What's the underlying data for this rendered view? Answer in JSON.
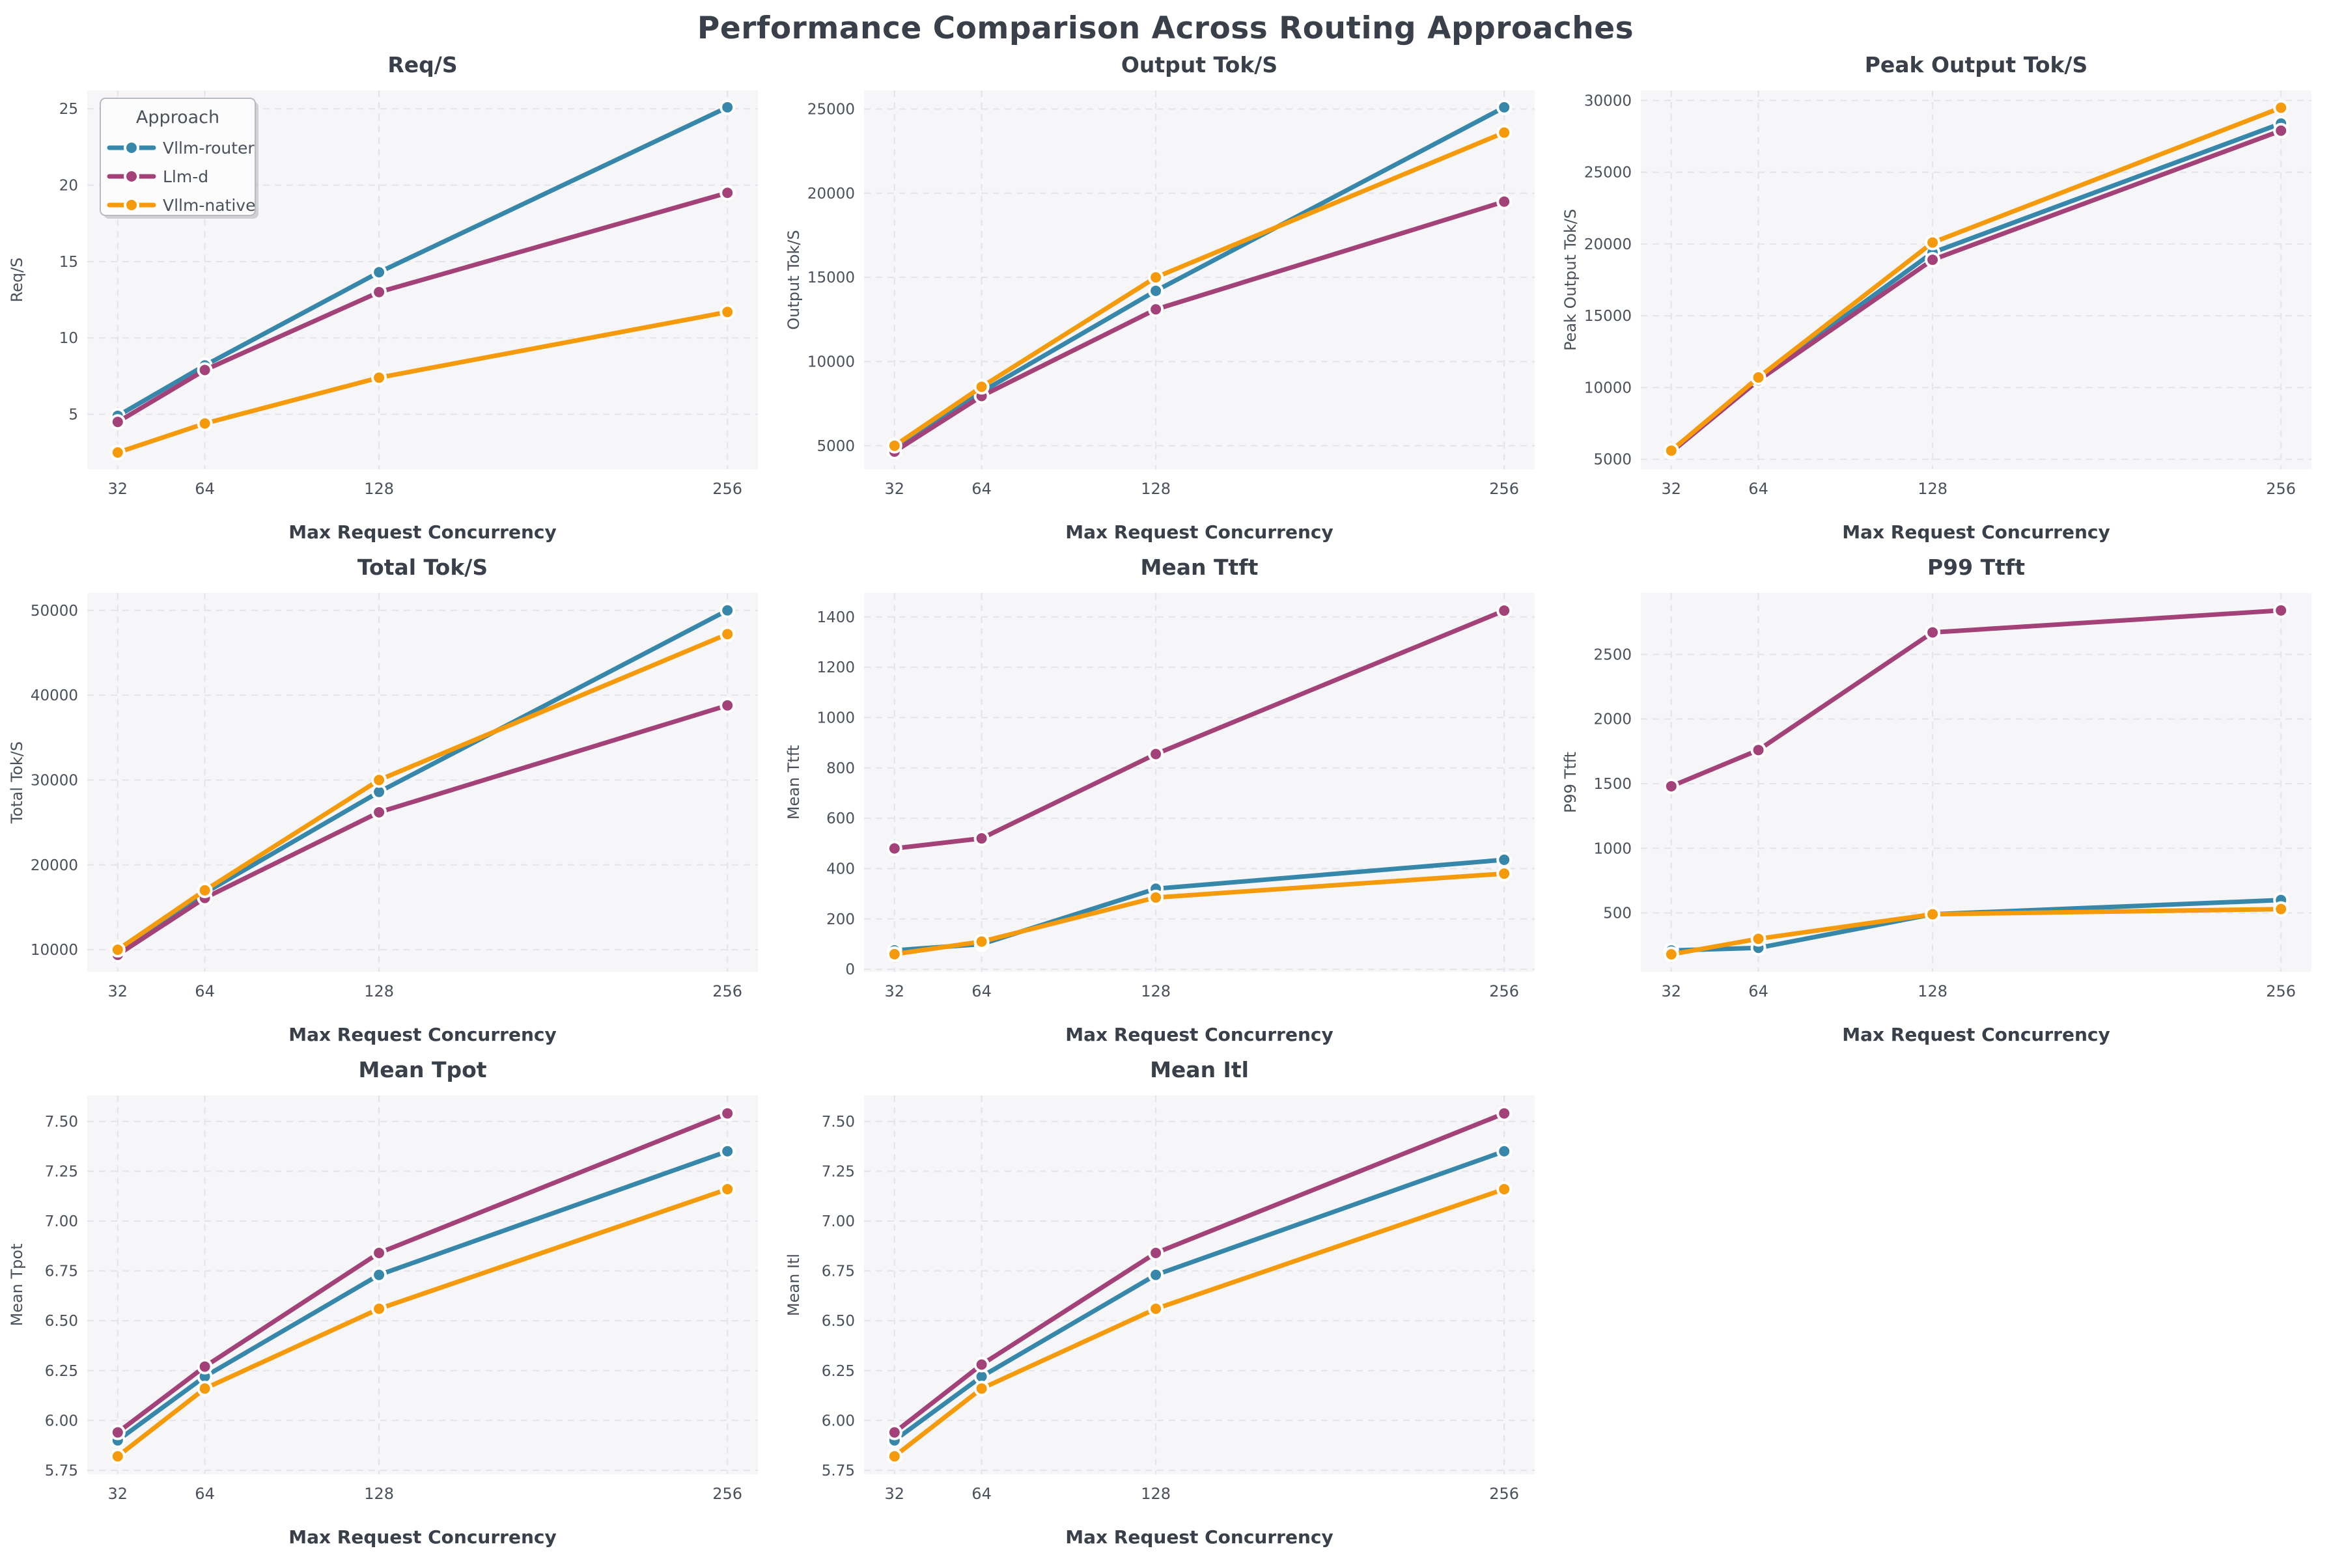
{
  "title": "Performance Comparison Across Routing Approaches",
  "colors": {
    "vllm_router": "#3787ab",
    "llm_d": "#a34278",
    "vllm_native": "#f49a0b",
    "heading_text": "#39404a",
    "tick_text": "#4a515b",
    "axes_background": "#f6f6f8",
    "gridline": "#e3e4e9",
    "legend_background": "#fcfcfd",
    "legend_border": "#b6bac1",
    "legend_shadow": "#b9b9bd",
    "marker_edge": "#ffffff"
  },
  "legend": {
    "title": "Approach",
    "entries": [
      {
        "label": "Vllm-router",
        "color_key": "vllm_router"
      },
      {
        "label": "Llm-d",
        "color_key": "llm_d"
      },
      {
        "label": "Vllm-native",
        "color_key": "vllm_native"
      }
    ]
  },
  "x_axis": {
    "label": "Max Request Concurrency",
    "values": [
      32,
      64,
      128,
      256
    ],
    "tick_labels": [
      "32",
      "64",
      "128",
      "256"
    ]
  },
  "chart_data": [
    {
      "type": "line",
      "title": "Req/S",
      "ylabel": "Req/S",
      "legend": true,
      "x": [
        32,
        64,
        128,
        256
      ],
      "series": [
        {
          "name": "Vllm-router",
          "color_key": "vllm_router",
          "values": [
            4.9,
            8.2,
            14.3,
            25.1
          ]
        },
        {
          "name": "Llm-d",
          "color_key": "llm_d",
          "values": [
            4.5,
            7.9,
            13.0,
            19.5
          ]
        },
        {
          "name": "Vllm-native",
          "color_key": "vllm_native",
          "values": [
            2.5,
            4.4,
            7.4,
            11.7
          ]
        }
      ],
      "ylim": [
        1.4,
        26.2
      ],
      "yticks": [
        5,
        10,
        15,
        20,
        25
      ],
      "ytick_labels": [
        "5",
        "10",
        "15",
        "20",
        "25"
      ]
    },
    {
      "type": "line",
      "title": "Output Tok/S",
      "ylabel": "Output Tok/S",
      "legend": false,
      "x": [
        32,
        64,
        128,
        256
      ],
      "series": [
        {
          "name": "Vllm-router",
          "color_key": "vllm_router",
          "values": [
            4950,
            8200,
            14200,
            25100
          ]
        },
        {
          "name": "Llm-d",
          "color_key": "llm_d",
          "values": [
            4650,
            7950,
            13100,
            19500
          ]
        },
        {
          "name": "Vllm-native",
          "color_key": "vllm_native",
          "values": [
            5000,
            8500,
            15000,
            23600
          ]
        }
      ],
      "ylim": [
        3600,
        26100
      ],
      "yticks": [
        5000,
        10000,
        15000,
        20000,
        25000
      ],
      "ytick_labels": [
        "5000",
        "10000",
        "15000",
        "20000",
        "25000"
      ]
    },
    {
      "type": "line",
      "title": "Peak Output Tok/S",
      "ylabel": "Peak Output Tok/S",
      "legend": false,
      "x": [
        32,
        64,
        128,
        256
      ],
      "series": [
        {
          "name": "Vllm-router",
          "color_key": "vllm_router",
          "values": [
            5600,
            10600,
            19400,
            28400
          ]
        },
        {
          "name": "Llm-d",
          "color_key": "llm_d",
          "values": [
            5500,
            10500,
            18900,
            27900
          ]
        },
        {
          "name": "Vllm-native",
          "color_key": "vllm_native",
          "values": [
            5600,
            10700,
            20100,
            29500
          ]
        }
      ],
      "ylim": [
        4300,
        30700
      ],
      "yticks": [
        5000,
        10000,
        15000,
        20000,
        25000,
        30000
      ],
      "ytick_labels": [
        "5000",
        "10000",
        "15000",
        "20000",
        "25000",
        "30000"
      ]
    },
    {
      "type": "line",
      "title": "Total Tok/S",
      "ylabel": "Total Tok/S",
      "legend": false,
      "x": [
        32,
        64,
        128,
        256
      ],
      "series": [
        {
          "name": "Vllm-router",
          "color_key": "vllm_router",
          "values": [
            10000,
            16700,
            28600,
            50000
          ]
        },
        {
          "name": "Llm-d",
          "color_key": "llm_d",
          "values": [
            9400,
            16100,
            26200,
            38800
          ]
        },
        {
          "name": "Vllm-native",
          "color_key": "vllm_native",
          "values": [
            10000,
            17000,
            30000,
            47200
          ]
        }
      ],
      "ylim": [
        7400,
        52050
      ],
      "yticks": [
        10000,
        20000,
        30000,
        40000,
        50000
      ],
      "ytick_labels": [
        "10000",
        "20000",
        "30000",
        "40000",
        "50000"
      ]
    },
    {
      "type": "line",
      "title": "Mean Ttft",
      "ylabel": "Mean Ttft",
      "legend": false,
      "x": [
        32,
        64,
        128,
        256
      ],
      "series": [
        {
          "name": "Vllm-router",
          "color_key": "vllm_router",
          "values": [
            75,
            100,
            320,
            435
          ]
        },
        {
          "name": "Llm-d",
          "color_key": "llm_d",
          "values": [
            480,
            520,
            855,
            1425
          ]
        },
        {
          "name": "Vllm-native",
          "color_key": "vllm_native",
          "values": [
            60,
            110,
            285,
            380
          ]
        }
      ],
      "ylim": [
        -10,
        1495
      ],
      "yticks": [
        0,
        200,
        400,
        600,
        800,
        1000,
        1200,
        1400
      ],
      "ytick_labels": [
        "0",
        "200",
        "400",
        "600",
        "800",
        "1000",
        "1200",
        "1400"
      ]
    },
    {
      "type": "line",
      "title": "P99 Ttft",
      "ylabel": "P99 Ttft",
      "legend": false,
      "x": [
        32,
        64,
        128,
        256
      ],
      "series": [
        {
          "name": "Vllm-router",
          "color_key": "vllm_router",
          "values": [
            210,
            230,
            490,
            600
          ]
        },
        {
          "name": "Llm-d",
          "color_key": "llm_d",
          "values": [
            1480,
            1760,
            2670,
            2840
          ]
        },
        {
          "name": "Vllm-native",
          "color_key": "vllm_native",
          "values": [
            180,
            300,
            490,
            530
          ]
        }
      ],
      "ylim": [
        45,
        2975
      ],
      "yticks": [
        500,
        1000,
        1500,
        2000,
        2500
      ],
      "ytick_labels": [
        "500",
        "1000",
        "1500",
        "2000",
        "2500"
      ]
    },
    {
      "type": "line",
      "title": "Mean Tpot",
      "ylabel": "Mean Tpot",
      "legend": false,
      "x": [
        32,
        64,
        128,
        256
      ],
      "series": [
        {
          "name": "Vllm-router",
          "color_key": "vllm_router",
          "values": [
            5.9,
            6.22,
            6.73,
            7.35
          ]
        },
        {
          "name": "Llm-d",
          "color_key": "llm_d",
          "values": [
            5.94,
            6.27,
            6.84,
            7.54
          ]
        },
        {
          "name": "Vllm-native",
          "color_key": "vllm_native",
          "values": [
            5.82,
            6.16,
            6.56,
            7.16
          ]
        }
      ],
      "ylim": [
        5.73,
        7.63
      ],
      "yticks": [
        5.75,
        6.0,
        6.25,
        6.5,
        6.75,
        7.0,
        7.25,
        7.5
      ],
      "ytick_labels": [
        "5.75",
        "6.00",
        "6.25",
        "6.50",
        "6.75",
        "7.00",
        "7.25",
        "7.50"
      ]
    },
    {
      "type": "line",
      "title": "Mean Itl",
      "ylabel": "Mean Itl",
      "legend": false,
      "x": [
        32,
        64,
        128,
        256
      ],
      "series": [
        {
          "name": "Vllm-router",
          "color_key": "vllm_router",
          "values": [
            5.9,
            6.22,
            6.73,
            7.35
          ]
        },
        {
          "name": "Llm-d",
          "color_key": "llm_d",
          "values": [
            5.94,
            6.28,
            6.84,
            7.54
          ]
        },
        {
          "name": "Vllm-native",
          "color_key": "vllm_native",
          "values": [
            5.82,
            6.16,
            6.56,
            7.16
          ]
        }
      ],
      "ylim": [
        5.73,
        7.63
      ],
      "yticks": [
        5.75,
        6.0,
        6.25,
        6.5,
        6.75,
        7.0,
        7.25,
        7.5
      ],
      "ytick_labels": [
        "5.75",
        "6.00",
        "6.25",
        "6.50",
        "6.75",
        "7.00",
        "7.25",
        "7.50"
      ]
    }
  ]
}
